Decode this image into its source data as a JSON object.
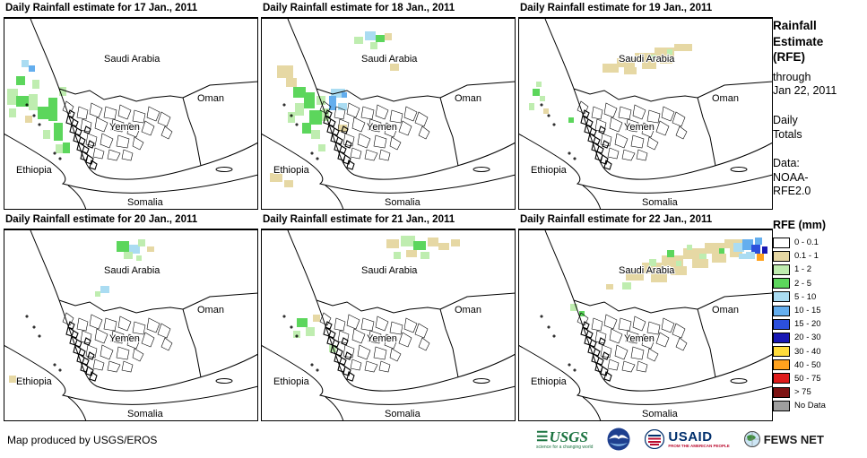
{
  "panels": [
    {
      "title": "Daily Rainfall estimate for 17 Jan., 2011",
      "patches": [
        [
          4,
          78,
          12,
          18,
          "g1"
        ],
        [
          14,
          64,
          10,
          10,
          "g2"
        ],
        [
          20,
          46,
          8,
          8,
          "b1"
        ],
        [
          28,
          52,
          7,
          7,
          "b2"
        ],
        [
          14,
          86,
          14,
          12,
          "g2"
        ],
        [
          28,
          84,
          10,
          18,
          "g1"
        ],
        [
          38,
          98,
          12,
          14,
          "g2"
        ],
        [
          50,
          88,
          10,
          26,
          "g2"
        ],
        [
          56,
          116,
          10,
          20,
          "g2"
        ],
        [
          62,
          76,
          8,
          10,
          "g1"
        ],
        [
          44,
          124,
          8,
          10,
          "g1"
        ],
        [
          24,
          108,
          8,
          8,
          "t"
        ],
        [
          66,
          138,
          8,
          12,
          "g2"
        ],
        [
          32,
          68,
          8,
          10,
          "g1"
        ],
        [
          6,
          100,
          8,
          10,
          "g1"
        ],
        [
          58,
          140,
          8,
          10,
          "g1"
        ]
      ]
    },
    {
      "title": "Daily Rainfall estimate for 18 Jan., 2011",
      "patches": [
        [
          116,
          14,
          12,
          10,
          "b1"
        ],
        [
          128,
          18,
          10,
          8,
          "g2"
        ],
        [
          122,
          26,
          8,
          8,
          "g1"
        ],
        [
          138,
          16,
          8,
          8,
          "t"
        ],
        [
          104,
          20,
          10,
          8,
          "g1"
        ],
        [
          18,
          52,
          18,
          14,
          "t"
        ],
        [
          28,
          66,
          12,
          10,
          "t"
        ],
        [
          144,
          50,
          10,
          8,
          "t"
        ],
        [
          36,
          76,
          14,
          12,
          "g2"
        ],
        [
          48,
          82,
          12,
          18,
          "g2"
        ],
        [
          38,
          94,
          10,
          14,
          "g1"
        ],
        [
          54,
          102,
          14,
          16,
          "g2"
        ],
        [
          46,
          116,
          10,
          12,
          "g2"
        ],
        [
          62,
          86,
          10,
          10,
          "g1"
        ],
        [
          68,
          100,
          8,
          14,
          "g1"
        ],
        [
          56,
          124,
          10,
          10,
          "g1"
        ],
        [
          30,
          104,
          8,
          12,
          "g1"
        ],
        [
          78,
          78,
          16,
          10,
          "b1"
        ],
        [
          76,
          86,
          8,
          16,
          "b2"
        ],
        [
          86,
          94,
          10,
          8,
          "b1"
        ],
        [
          90,
          82,
          6,
          6,
          "b2"
        ],
        [
          86,
          118,
          10,
          8,
          "t"
        ],
        [
          10,
          172,
          14,
          10,
          "t"
        ],
        [
          26,
          180,
          10,
          8,
          "t"
        ],
        [
          64,
          140,
          8,
          8,
          "g1"
        ]
      ]
    },
    {
      "title": "Daily Rainfall estimate for 19 Jan., 2011",
      "patches": [
        [
          94,
          50,
          18,
          10,
          "t"
        ],
        [
          110,
          44,
          20,
          10,
          "t"
        ],
        [
          130,
          38,
          22,
          10,
          "t"
        ],
        [
          152,
          32,
          22,
          10,
          "t"
        ],
        [
          174,
          28,
          20,
          8,
          "t"
        ],
        [
          118,
          54,
          14,
          8,
          "t"
        ],
        [
          138,
          48,
          16,
          8,
          "t"
        ],
        [
          158,
          42,
          14,
          8,
          "t"
        ],
        [
          148,
          40,
          6,
          6,
          "g1"
        ],
        [
          166,
          34,
          6,
          6,
          "g1"
        ],
        [
          16,
          78,
          8,
          8,
          "g2"
        ],
        [
          24,
          86,
          6,
          6,
          "g1"
        ],
        [
          12,
          94,
          6,
          8,
          "g1"
        ],
        [
          28,
          100,
          6,
          6,
          "t"
        ],
        [
          56,
          110,
          6,
          6,
          "g2"
        ],
        [
          20,
          70,
          6,
          6,
          "g1"
        ]
      ]
    },
    {
      "title": "Daily Rainfall estimate for 20 Jan., 2011",
      "patches": [
        [
          126,
          12,
          14,
          12,
          "g2"
        ],
        [
          140,
          16,
          12,
          10,
          "b1"
        ],
        [
          134,
          24,
          10,
          8,
          "g1"
        ],
        [
          150,
          10,
          8,
          8,
          "g1"
        ],
        [
          160,
          18,
          8,
          6,
          "t"
        ],
        [
          108,
          62,
          10,
          8,
          "b1"
        ],
        [
          102,
          68,
          6,
          6,
          "g1"
        ],
        [
          6,
          162,
          8,
          8,
          "t"
        ],
        [
          148,
          28,
          6,
          6,
          "g1"
        ]
      ]
    },
    {
      "title": "Daily Rainfall estimate for 21 Jan., 2011",
      "patches": [
        [
          140,
          10,
          14,
          10,
          "t"
        ],
        [
          156,
          6,
          16,
          12,
          "g1"
        ],
        [
          170,
          12,
          14,
          10,
          "g2"
        ],
        [
          186,
          8,
          12,
          10,
          "t"
        ],
        [
          198,
          14,
          12,
          8,
          "t"
        ],
        [
          162,
          22,
          12,
          8,
          "t"
        ],
        [
          148,
          24,
          8,
          8,
          "g1"
        ],
        [
          178,
          24,
          10,
          8,
          "g1"
        ],
        [
          212,
          10,
          10,
          8,
          "t"
        ],
        [
          40,
          98,
          12,
          10,
          "g2"
        ],
        [
          50,
          108,
          10,
          10,
          "g1"
        ],
        [
          36,
          112,
          8,
          8,
          "g1"
        ],
        [
          58,
          94,
          8,
          8,
          "t"
        ],
        [
          76,
          128,
          8,
          8,
          "g1"
        ]
      ]
    },
    {
      "title": "Daily Rainfall estimate for 22 Jan., 2011",
      "patches": [
        [
          120,
          44,
          20,
          12,
          "t"
        ],
        [
          138,
          36,
          22,
          12,
          "t"
        ],
        [
          160,
          28,
          24,
          12,
          "t"
        ],
        [
          184,
          20,
          24,
          12,
          "t"
        ],
        [
          208,
          14,
          22,
          12,
          "t"
        ],
        [
          230,
          10,
          20,
          10,
          "t"
        ],
        [
          148,
          48,
          18,
          10,
          "t"
        ],
        [
          170,
          40,
          18,
          10,
          "t"
        ],
        [
          194,
          32,
          18,
          10,
          "t"
        ],
        [
          216,
          26,
          16,
          10,
          "t"
        ],
        [
          236,
          20,
          14,
          10,
          "t"
        ],
        [
          146,
          32,
          8,
          8,
          "g1"
        ],
        [
          166,
          22,
          8,
          8,
          "g2"
        ],
        [
          188,
          16,
          6,
          6,
          "g1"
        ],
        [
          202,
          26,
          8,
          6,
          "g1"
        ],
        [
          224,
          20,
          6,
          6,
          "g2"
        ],
        [
          176,
          34,
          6,
          6,
          "g1"
        ],
        [
          156,
          42,
          6,
          6,
          "g1"
        ],
        [
          240,
          14,
          12,
          10,
          "b1"
        ],
        [
          250,
          10,
          12,
          12,
          "b2"
        ],
        [
          260,
          16,
          10,
          10,
          "b3"
        ],
        [
          254,
          24,
          10,
          8,
          "b1"
        ],
        [
          264,
          8,
          8,
          8,
          "b2"
        ],
        [
          266,
          26,
          8,
          8,
          "o"
        ],
        [
          272,
          18,
          6,
          8,
          "b4"
        ],
        [
          246,
          26,
          8,
          6,
          "b1"
        ],
        [
          58,
          82,
          8,
          8,
          "g1"
        ],
        [
          68,
          90,
          6,
          6,
          "g2"
        ],
        [
          98,
          60,
          8,
          6,
          "t"
        ],
        [
          116,
          58,
          10,
          8,
          "g1"
        ]
      ]
    }
  ],
  "map_labels": {
    "saudi": "Saudi Arabia",
    "oman": "Oman",
    "yemen": "Yemen",
    "ethiopia": "Ethiopia",
    "somalia": "Somalia"
  },
  "palette": {
    "w": "#FFFFFF",
    "t": "#E6D8A4",
    "g1": "#BFEDB0",
    "g2": "#5CD65C",
    "b1": "#AADCF2",
    "b2": "#64AEEE",
    "b3": "#2C50DC",
    "b4": "#1818B4",
    "y": "#FFDC3C",
    "o": "#FFA21E",
    "r": "#DE1B1B",
    "dr": "#7E1414",
    "nd": "#9E9E9E"
  },
  "sidebar": {
    "title": "Rainfall\nEstimate\n(RFE)",
    "subtitle": "through\nJan 22, 2011",
    "period": "Daily\nTotals",
    "source": "Data:\nNOAA-\nRFE2.0",
    "legend_title": "RFE (mm)",
    "legend": [
      {
        "label": "0 - 0.1",
        "color": "#FFFFFF"
      },
      {
        "label": "0.1 - 1",
        "color": "#E6D8A4"
      },
      {
        "label": "1 - 2",
        "color": "#BFEDB0"
      },
      {
        "label": "2 - 5",
        "color": "#5CD65C"
      },
      {
        "label": "5 - 10",
        "color": "#AADCF2"
      },
      {
        "label": "10 - 15",
        "color": "#64AEEE"
      },
      {
        "label": "15 - 20",
        "color": "#2C50DC"
      },
      {
        "label": "20 - 30",
        "color": "#1818B4"
      },
      {
        "label": "30 - 40",
        "color": "#FFDC3C"
      },
      {
        "label": "40 - 50",
        "color": "#FFA21E"
      },
      {
        "label": "50 - 75",
        "color": "#DE1B1B"
      },
      {
        "label": "> 75",
        "color": "#7E1414"
      },
      {
        "label": "No Data",
        "color": "#9E9E9E"
      }
    ]
  },
  "footer": {
    "credit": "Map produced by USGS/EROS",
    "logos": {
      "usgs": "USGS",
      "usgs_tagline": "science for a changing world",
      "usaid": "USAID",
      "usaid_tagline": "FROM THE AMERICAN PEOPLE",
      "fewsnet": "FEWS NET"
    }
  }
}
